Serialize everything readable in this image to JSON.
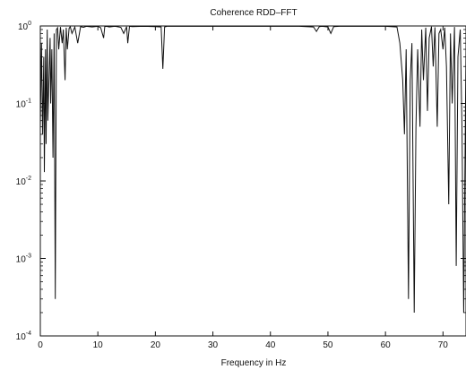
{
  "chart_data": {
    "type": "line",
    "title": "Coherence RDD–FFT",
    "xlabel": "Frequency in Hz",
    "ylabel": "",
    "y_scale": "log",
    "xlim": [
      0,
      74
    ],
    "ylim": [
      0.0001,
      1
    ],
    "grid": false,
    "x_ticks": [
      {
        "value": 0,
        "label": "0"
      },
      {
        "value": 10,
        "label": "10"
      },
      {
        "value": 20,
        "label": "20"
      },
      {
        "value": 30,
        "label": "30"
      },
      {
        "value": 40,
        "label": "40"
      },
      {
        "value": 50,
        "label": "50"
      },
      {
        "value": 60,
        "label": "60"
      },
      {
        "value": 70,
        "label": "70"
      }
    ],
    "y_ticks": [
      {
        "value": 1,
        "base": "10",
        "exp": "0"
      },
      {
        "value": 0.1,
        "base": "10",
        "exp": "-1"
      },
      {
        "value": 0.01,
        "base": "10",
        "exp": "-2"
      },
      {
        "value": 0.001,
        "base": "10",
        "exp": "-3"
      },
      {
        "value": 0.0001,
        "base": "10",
        "exp": "-4"
      }
    ],
    "series": [
      {
        "color": "#111111",
        "x": [
          0,
          0.2,
          0.4,
          0.6,
          0.7,
          0.9,
          1.0,
          1.2,
          1.3,
          1.5,
          1.7,
          1.8,
          2.0,
          2.2,
          2.4,
          2.6,
          2.8,
          3.0,
          3.2,
          3.5,
          3.8,
          4.0,
          4.3,
          4.5,
          4.7,
          5.0,
          5.2,
          5.5,
          6.0,
          6.5,
          7.0,
          7.5,
          8.0,
          9.0,
          10.0,
          10.5,
          11.0,
          11.2,
          11.5,
          12.0,
          13.0,
          14.0,
          14.5,
          15.0,
          15.2,
          15.5,
          16.0,
          18.0,
          20.0,
          21.0,
          21.3,
          21.6,
          22.0,
          25.0,
          30.0,
          35.0,
          40.0,
          45.0,
          47.5,
          48.0,
          48.5,
          49.0,
          50.0,
          50.5,
          51.0,
          52.0,
          55.0,
          60.0,
          62.0,
          62.5,
          63.0,
          63.3,
          63.6,
          64.0,
          64.3,
          64.6,
          65.0,
          65.3,
          65.6,
          66.0,
          66.3,
          66.6,
          67.0,
          67.3,
          67.6,
          68.0,
          68.3,
          68.6,
          69.0,
          69.3,
          69.6,
          70.0,
          70.3,
          70.6,
          71.0,
          71.3,
          71.6,
          72.0,
          72.3,
          72.6,
          73.0,
          73.3,
          73.6,
          74.0
        ],
        "y": [
          0.05,
          0.6,
          0.04,
          0.4,
          0.013,
          0.5,
          0.03,
          0.9,
          0.06,
          0.2,
          0.7,
          0.1,
          0.5,
          0.02,
          0.8,
          0.0003,
          0.9,
          0.95,
          0.5,
          0.97,
          0.6,
          0.9,
          0.2,
          0.95,
          0.5,
          0.93,
          0.98,
          0.8,
          0.97,
          0.6,
          0.98,
          0.96,
          0.99,
          0.97,
          0.99,
          0.95,
          0.7,
          0.98,
          0.99,
          0.97,
          0.99,
          0.96,
          0.8,
          0.98,
          0.6,
          0.99,
          0.98,
          0.99,
          0.98,
          0.97,
          0.28,
          0.97,
          0.99,
          0.99,
          0.99,
          0.99,
          0.99,
          0.99,
          0.97,
          0.85,
          0.98,
          0.99,
          0.97,
          0.8,
          0.98,
          0.99,
          0.99,
          0.99,
          0.97,
          0.6,
          0.2,
          0.04,
          0.5,
          0.0003,
          0.2,
          0.6,
          0.0002,
          0.05,
          0.5,
          0.05,
          0.9,
          0.2,
          0.95,
          0.08,
          0.7,
          0.98,
          0.3,
          0.96,
          0.05,
          0.8,
          0.9,
          0.5,
          0.95,
          0.3,
          0.005,
          0.8,
          0.1,
          0.97,
          0.0008,
          0.4,
          0.9,
          0.05,
          0.0002,
          0.5
        ]
      }
    ]
  }
}
